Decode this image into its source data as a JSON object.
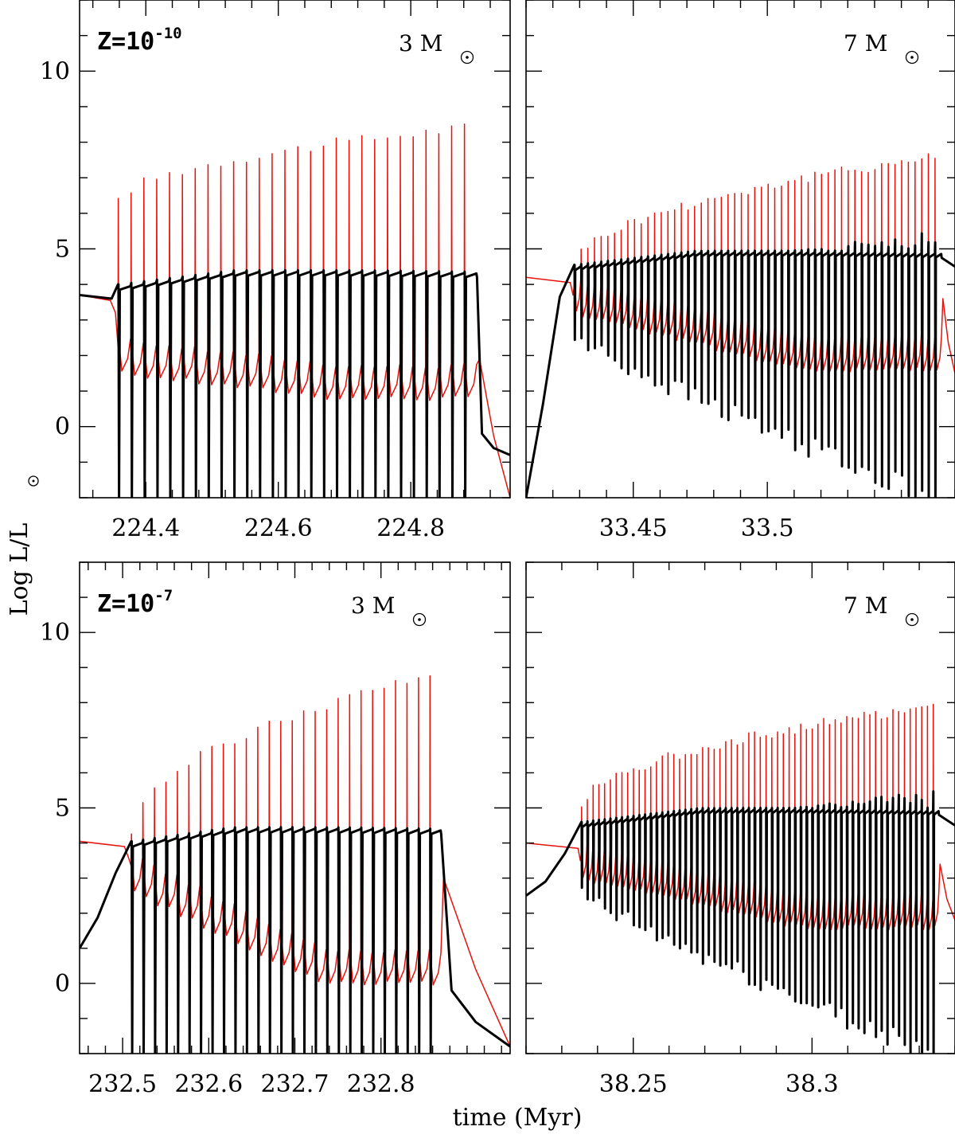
{
  "figure": {
    "ylabel": "Log L/L",
    "xlabel": "time (Myr)"
  },
  "chart_data": [
    {
      "type": "line",
      "panel": "top-left",
      "metallicity_label": "Z=10",
      "metallicity_exp": "-10",
      "mass_label": "3 M",
      "xlim": [
        224.3,
        224.95
      ],
      "ylim": [
        -2,
        12
      ],
      "xticks": [
        224.4,
        224.6,
        224.8
      ],
      "xticklabels": [
        "224.4",
        "224.6",
        "224.8"
      ],
      "yticks": [
        0,
        5,
        10
      ],
      "yticklabels": [
        "0",
        "5",
        "10"
      ],
      "series": [
        {
          "name": "red (thin) track",
          "color": "#e8120c",
          "pre_level": 3.7,
          "pulse_start": 224.358,
          "pulse_end": 224.9,
          "n_pulses": 28,
          "peak_min": 6.3,
          "peak_max": 8.4,
          "trough_min": 0.8,
          "trough_max": 1.5,
          "end_value": -2
        },
        {
          "name": "black (thick) track",
          "color": "#000000",
          "pre_level": 3.7,
          "plateau": 4.3,
          "pulse_start": 224.358,
          "pulse_end": 224.9,
          "n_pulses": 28,
          "dip_to": -2,
          "end_value": -0.8
        }
      ]
    },
    {
      "type": "line",
      "panel": "top-right",
      "mass_label": "7 M",
      "xlim": [
        33.41,
        33.57
      ],
      "ylim": [
        -2,
        12
      ],
      "xticks": [
        33.45,
        33.5
      ],
      "xticklabels": [
        "33.45",
        "33.5"
      ],
      "yticks": [
        0,
        5,
        10
      ],
      "yticklabels": [
        "0",
        "5",
        "10"
      ],
      "series": [
        {
          "name": "red (thin) track",
          "color": "#e8120c",
          "pre_level": 4.2,
          "pulse_start": 33.428,
          "pulse_end": 33.565,
          "n_pulses": 55,
          "peak_min": 4.5,
          "peak_max": 7.6,
          "trough_min": 1.6,
          "trough_max": 3.2,
          "end_value": 1.5
        },
        {
          "name": "black (thick) track",
          "color": "#000000",
          "pre_level": -2,
          "plateau": 4.85,
          "pulse_start": 33.428,
          "pulse_end": 33.565,
          "n_pulses": 55,
          "dip_min": 2.5,
          "dip_max": -2,
          "end_value": 4.5
        }
      ]
    },
    {
      "type": "line",
      "panel": "bottom-left",
      "metallicity_label": "Z=10",
      "metallicity_exp": "-7",
      "mass_label": "3 M",
      "xlim": [
        232.45,
        232.95
      ],
      "ylim": [
        -2,
        12
      ],
      "xticks": [
        232.5,
        232.6,
        232.7,
        232.8
      ],
      "xticklabels": [
        "232.5",
        "232.6",
        "232.7",
        "232.8"
      ],
      "yticks": [
        0,
        5,
        10
      ],
      "yticklabels": [
        "0",
        "5",
        "10"
      ],
      "series": [
        {
          "name": "red (thin) track",
          "color": "#e8120c",
          "pre_level": 4.05,
          "pulse_start": 232.51,
          "pulse_end": 232.87,
          "n_pulses": 27,
          "peak_min": 4.3,
          "peak_max": 8.8,
          "trough_min": 0.0,
          "trough_max": 2.6,
          "end_value": -1.8
        },
        {
          "name": "black (thick) track",
          "color": "#000000",
          "pre_level": 1.0,
          "plateau": 4.35,
          "pulse_start": 232.51,
          "pulse_end": 232.87,
          "n_pulses": 27,
          "dip_to": -2,
          "end_value": -1.8
        }
      ]
    },
    {
      "type": "line",
      "panel": "bottom-right",
      "mass_label": "7 M",
      "xlim": [
        38.22,
        38.34
      ],
      "ylim": [
        -2,
        12
      ],
      "xticks": [
        38.25,
        38.3
      ],
      "xticklabels": [
        "38.25",
        "38.3"
      ],
      "yticks": [
        0,
        5,
        10
      ],
      "yticklabels": [
        "0",
        "5",
        "10"
      ],
      "series": [
        {
          "name": "red (thin) track",
          "color": "#e8120c",
          "pre_level": 4.0,
          "pulse_start": 38.2355,
          "pulse_end": 38.3355,
          "n_pulses": 62,
          "peak_min": 5.0,
          "peak_max": 7.9,
          "trough_min": 1.6,
          "trough_max": 3.0,
          "end_value": 1.8
        },
        {
          "name": "black (thick) track",
          "color": "#000000",
          "pre_level": 2.5,
          "plateau": 4.9,
          "pulse_start": 38.2355,
          "pulse_end": 38.3355,
          "n_pulses": 62,
          "dip_min": 2.5,
          "dip_max": -2,
          "end_value": 4.5
        }
      ]
    }
  ]
}
